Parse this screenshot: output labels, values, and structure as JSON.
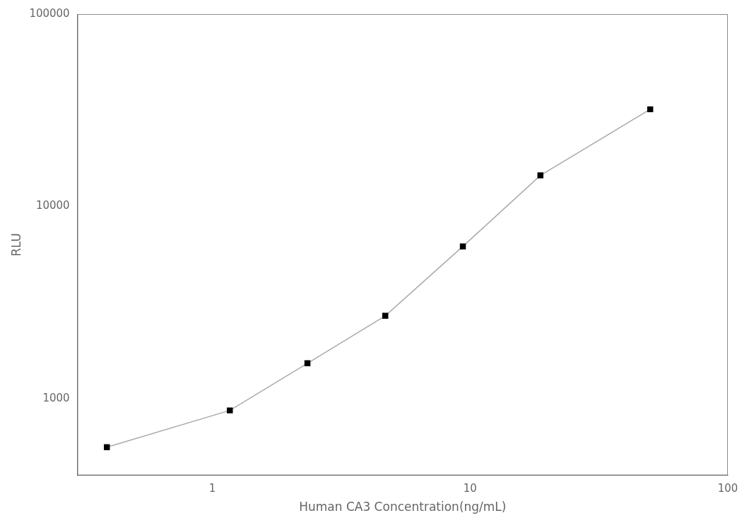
{
  "chart_data": {
    "type": "line",
    "x": [
      0.39,
      1.17,
      2.34,
      4.69,
      9.38,
      18.75,
      50.0
    ],
    "series": [
      {
        "type": "line",
        "color": "#aaaaaa",
        "values": [
          560,
          870,
          1530,
          2700,
          6200,
          14500,
          32000
        ]
      },
      {
        "type": "scatter",
        "color": "#000000",
        "marker": "square",
        "values": [
          560,
          870,
          1530,
          2700,
          6200,
          14500,
          32000
        ]
      }
    ],
    "xlabel": "Human CA3 Concentration(ng/mL)",
    "ylabel": "RLU",
    "log": true,
    "xlim": [
      0.3,
      100
    ],
    "ylim": [
      400,
      100000
    ],
    "xticks": [
      1,
      10,
      100
    ],
    "yticks": [
      1000,
      10000,
      100000
    ],
    "grid": false
  }
}
